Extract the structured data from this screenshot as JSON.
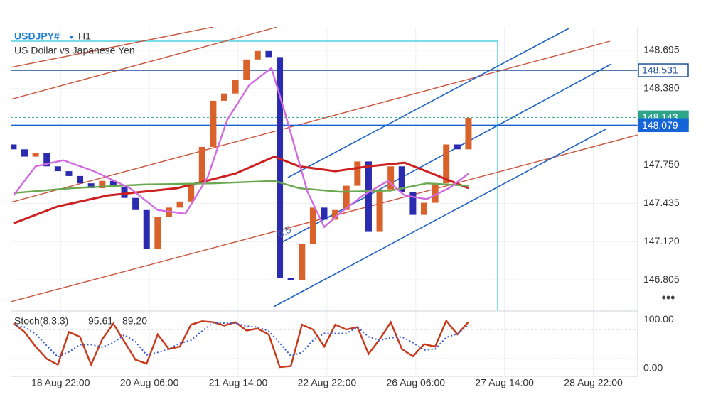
{
  "chart_data": {
    "type": "candlestick",
    "title": "USDJPY#",
    "timeframe": "H1",
    "subtitle": "US Dollar vs Japanese Yen",
    "annotation": "0.5",
    "menu": "•••",
    "x": [
      0,
      4,
      8,
      12,
      16,
      20,
      24,
      28,
      32,
      36,
      40,
      44,
      48,
      52,
      56,
      60,
      64,
      68,
      72,
      76,
      80,
      84,
      88,
      92,
      96,
      100,
      104,
      108,
      112,
      116,
      120,
      124,
      128,
      132,
      136,
      140,
      144,
      148,
      152,
      156,
      160,
      164
    ],
    "candles": {
      "up_color": "#d9622b",
      "down_color": "#2b2bb0",
      "open": [
        147.92,
        147.88,
        147.82,
        147.85,
        147.74,
        147.7,
        147.66,
        147.6,
        147.56,
        147.62,
        147.57,
        147.48,
        147.38,
        147.06,
        147.32,
        147.4,
        147.45,
        147.6,
        147.9,
        148.28,
        148.34,
        148.45,
        148.62,
        148.69,
        148.64,
        146.82,
        146.8,
        147.1,
        147.4,
        147.3,
        147.38,
        147.58,
        147.78,
        147.2,
        147.55,
        147.74,
        147.53,
        147.34,
        147.44,
        147.6,
        147.92,
        147.88
      ],
      "close": [
        147.88,
        147.82,
        147.85,
        147.74,
        147.7,
        147.66,
        147.6,
        147.56,
        147.62,
        147.57,
        147.48,
        147.38,
        147.06,
        147.32,
        147.4,
        147.45,
        147.6,
        147.9,
        148.28,
        148.34,
        148.45,
        148.62,
        148.69,
        148.64,
        146.82,
        146.8,
        147.1,
        147.4,
        147.3,
        147.38,
        147.58,
        147.78,
        147.2,
        147.55,
        147.74,
        147.53,
        147.34,
        147.44,
        147.6,
        147.92,
        147.88,
        148.14
      ]
    },
    "ma_series": [
      {
        "color": "#cc1f1f",
        "x": [
          0,
          16,
          34,
          59,
          80,
          94,
          103,
          116,
          128,
          141,
          151,
          164
        ],
        "values": [
          147.27,
          147.41,
          147.5,
          147.56,
          147.68,
          147.82,
          147.74,
          147.7,
          147.74,
          147.77,
          147.68,
          147.56
        ]
      },
      {
        "color": "#6aa84f",
        "x": [
          0,
          21,
          47,
          72,
          94,
          103,
          118,
          136,
          149,
          164
        ],
        "values": [
          147.52,
          147.56,
          147.59,
          147.6,
          147.62,
          147.56,
          147.53,
          147.54,
          147.6,
          147.58
        ]
      },
      {
        "color": "#d36be0",
        "x": [
          0,
          8,
          18,
          29,
          42,
          52,
          62,
          70,
          77,
          85,
          93,
          98,
          106,
          112,
          118,
          126,
          135,
          141,
          149,
          157,
          164
        ],
        "values": [
          147.5,
          147.74,
          147.79,
          147.7,
          147.56,
          147.38,
          147.35,
          147.65,
          148.12,
          148.41,
          148.55,
          148.17,
          147.53,
          147.24,
          147.36,
          147.5,
          147.62,
          147.5,
          147.47,
          147.56,
          147.68
        ]
      }
    ],
    "xlim": [
      -1,
      225
    ],
    "xticks": [
      {
        "value": 17,
        "label": "18 Aug 22:00"
      },
      {
        "value": 49,
        "label": "20 Aug 06:00"
      },
      {
        "value": 81,
        "label": "21 Aug 14:00"
      },
      {
        "value": 113,
        "label": "22 Aug 22:00"
      },
      {
        "value": 145,
        "label": "26 Aug 06:00"
      },
      {
        "value": 177,
        "label": "27 Aug 14:00"
      },
      {
        "value": 209,
        "label": "28 Aug 22:00"
      }
    ],
    "ylim": [
      146.548,
      148.888
    ],
    "yticks": [
      148.695,
      {
        "value": 148.38,
        "label": "148.380"
      },
      {
        "value": 147.75,
        "label": "147.750"
      },
      147.435,
      {
        "value": 147.12,
        "label": "147.120"
      },
      146.805
    ],
    "price_lines": [
      {
        "value": 148.531,
        "color": "#1f4e99",
        "dashed": false
      },
      {
        "value": 148.143,
        "color": "#2ea58a",
        "dashed": true
      },
      {
        "value": 148.079,
        "color": "#1565d8",
        "dashed": false
      }
    ],
    "stoch": {
      "type": "line",
      "label": "Stoch(8,3,3)",
      "readout": [
        95.61,
        {
          "value": 89.2,
          "label": "89.20"
        }
      ],
      "ylim": [
        -16,
        115
      ],
      "yticks": [
        {
          "value": 100,
          "label": "100.00"
        },
        {
          "value": 0,
          "label": "0.00"
        }
      ],
      "levels": [
        80,
        20
      ],
      "series": [
        {
          "color": "#c8381a",
          "dashed": false,
          "values": [
            93,
            75,
            45,
            20,
            8,
            75,
            65,
            8,
            60,
            92,
            55,
            18,
            10,
            70,
            40,
            45,
            90,
            97,
            95,
            88,
            95,
            78,
            82,
            70,
            3,
            5,
            90,
            80,
            45,
            90,
            80,
            85,
            30,
            60,
            95,
            40,
            25,
            50,
            45,
            98,
            70,
            95.61
          ]
        },
        {
          "color": "#3a5bd9",
          "dashed": true,
          "values": [
            90,
            85,
            71,
            47,
            24,
            34,
            49,
            49,
            44,
            53,
            69,
            55,
            28,
            33,
            40,
            52,
            58,
            77,
            94,
            93,
            93,
            87,
            85,
            77,
            52,
            26,
            33,
            58,
            72,
            72,
            72,
            85,
            65,
            58,
            63,
            65,
            53,
            38,
            40,
            64,
            71,
            89.2
          ]
        }
      ]
    }
  }
}
